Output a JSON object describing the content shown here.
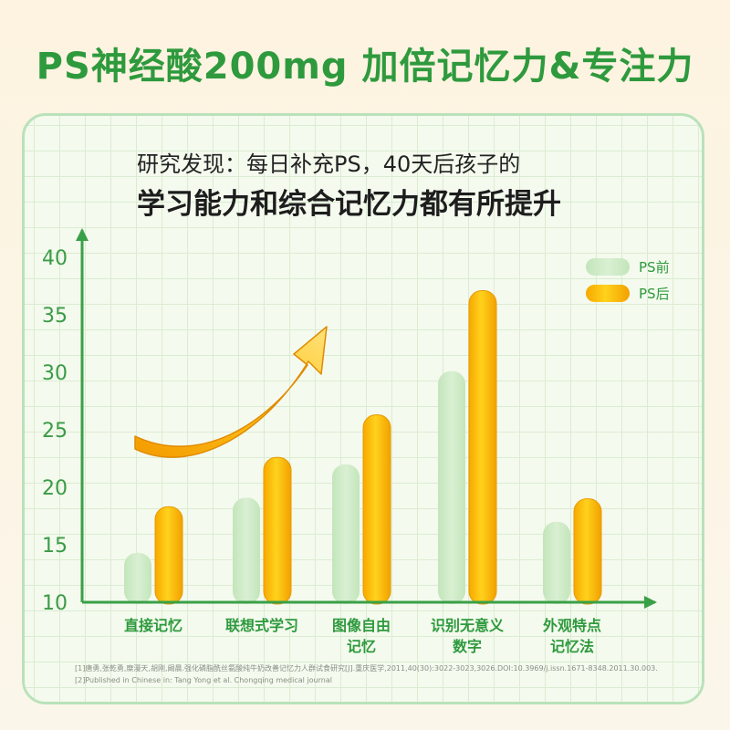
{
  "headline": "PS神经酸200mg 加倍记忆力&专注力",
  "subtitle_line1": "研究发现：每日补充PS，40天后孩子的",
  "subtitle_line2": "学习能力和综合记忆力都有所提升",
  "colors": {
    "headline": "#2e9a3d",
    "axis": "#3aa047",
    "before": "#cfeac8",
    "after": "#f5b40c"
  },
  "chart_data": {
    "type": "bar",
    "categories": [
      [
        "直接记忆"
      ],
      [
        "联想式学习"
      ],
      [
        "图像自由",
        "记忆"
      ],
      [
        "识别无意义",
        "数字"
      ],
      [
        "外观特点",
        "记忆法"
      ]
    ],
    "series": [
      {
        "name": "PS前",
        "values": [
          14.3,
          19.1,
          22.0,
          30.1,
          17.0
        ]
      },
      {
        "name": "PS后",
        "values": [
          18.3,
          22.6,
          26.3,
          37.1,
          19.0
        ]
      }
    ],
    "y_ticks": [
      10,
      15,
      20,
      25,
      30,
      35,
      40
    ],
    "ylim": [
      10,
      40
    ],
    "legend_position": "top-right",
    "grid": true
  },
  "references": [
    "[1]唐勇,张乾勇,糜漫天,胡刚,阚晨.强化磷脂酰丝氨酸纯牛奶改善记忆力人群试食研究[J].重庆医学,2011,40(30):3022-3023,3026.DOI:10.3969/j.issn.1671-8348.2011.30.003.",
    "[2]Published in Chinese in: Tang Yong et al. Chongqing medical journal"
  ]
}
